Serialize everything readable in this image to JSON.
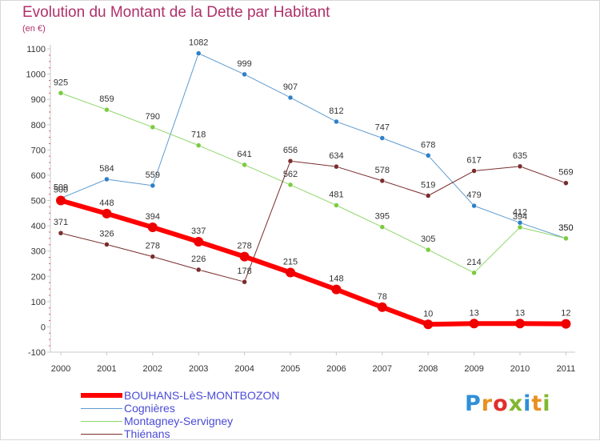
{
  "title": "Evolution du Montant de la Dette par Habitant",
  "unit": "(en €)",
  "logo": {
    "letters": [
      "P",
      "r",
      "o",
      "x",
      "i",
      "t",
      "i"
    ],
    "colors": [
      "#2f8fd8",
      "#e89020",
      "#e0302a",
      "#80b830",
      "#2f8fd8",
      "#e89020",
      "#80b830"
    ]
  },
  "chart_data": {
    "type": "line",
    "title": "Evolution du Montant de la Dette par Habitant",
    "ylabel": "(en €)",
    "xlabel": "",
    "ylim": [
      -100,
      1100
    ],
    "yticks": [
      -100,
      0,
      100,
      200,
      300,
      400,
      500,
      600,
      700,
      800,
      900,
      1000,
      1100
    ],
    "categories": [
      "2000",
      "2001",
      "2002",
      "2003",
      "2004",
      "2005",
      "2006",
      "2007",
      "2008",
      "2009",
      "2010",
      "2011"
    ],
    "grid": false,
    "legend": "bottom-left",
    "series": [
      {
        "name": "Cognières",
        "color": "#5f9bd0",
        "marker": "#2f7fc8",
        "width": 1,
        "segments": [
          [
            0,
            11
          ]
        ],
        "values": [
          509,
          584,
          559,
          1082,
          999,
          907,
          812,
          747,
          678,
          479,
          412,
          350
        ]
      },
      {
        "name": "Montagney-Servigney",
        "color": "#8fd66a",
        "marker": "#7acc3e",
        "width": 1,
        "segments": [
          [
            0,
            9
          ],
          [
            9,
            11
          ]
        ],
        "values": [
          925,
          859,
          790,
          718,
          641,
          562,
          481,
          395,
          305,
          214,
          394,
          350
        ]
      },
      {
        "name": "Thiénans",
        "color": "#7a2d2d",
        "marker": "#7a2d2d",
        "width": 1,
        "segments": [
          [
            0,
            4
          ],
          [
            4,
            11
          ]
        ],
        "values": [
          371,
          326,
          278,
          226,
          178,
          656,
          634,
          578,
          519,
          617,
          635,
          569
        ]
      },
      {
        "name": "BOUHANS-LèS-MONTBOZON",
        "color": "#ff0000",
        "marker": "#ee0000",
        "width": 6,
        "segments": [
          [
            0,
            11
          ]
        ],
        "values": [
          500,
          448,
          394,
          337,
          278,
          215,
          148,
          78,
          10,
          13,
          13,
          12
        ]
      }
    ]
  },
  "legend_items": [
    {
      "label": "BOUHANS-LèS-MONTBOZON",
      "color": "#ff0000",
      "width": 6
    },
    {
      "label": "Cognières",
      "color": "#5f9bd0",
      "width": 1
    },
    {
      "label": "Montagney-Servigney",
      "color": "#8fd66a",
      "width": 1
    },
    {
      "label": "Thiénans",
      "color": "#7a2d2d",
      "width": 1
    }
  ]
}
